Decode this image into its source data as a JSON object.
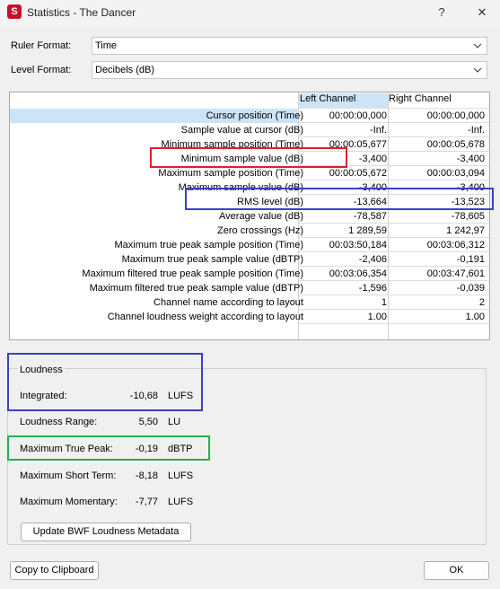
{
  "window": {
    "title": "Statistics - The Dancer",
    "app_icon_letter": "S",
    "help_glyph": "?",
    "close_glyph": "✕"
  },
  "settings": {
    "ruler_label": "Ruler Format:",
    "ruler_value": "Time",
    "level_label": "Level Format:",
    "level_value": "Decibels (dB)"
  },
  "table": {
    "headers": [
      "Left Channel",
      "Right Channel"
    ],
    "rows": [
      {
        "name": "Cursor position (Time)",
        "left": "00:00:00,000",
        "right": "00:00:00,000"
      },
      {
        "name": "Sample value at cursor (dB)",
        "left": "-Inf.",
        "right": "-Inf."
      },
      {
        "name": "Minimum sample position (Time)",
        "left": "00:00:05,677",
        "right": "00:00:05,678"
      },
      {
        "name": "Minimum sample value (dB)",
        "left": "-3,400",
        "right": "-3,400"
      },
      {
        "name": "Maximum sample position (Time)",
        "left": "00:00:05,672",
        "right": "00:00:03,094"
      },
      {
        "name": "Maximum sample value (dB)",
        "left": "-3,400",
        "right": "-3,400"
      },
      {
        "name": "RMS level (dB)",
        "left": "-13,664",
        "right": "-13,523"
      },
      {
        "name": "Average value (dB)",
        "left": "-78,587",
        "right": "-78,605"
      },
      {
        "name": "Zero crossings (Hz)",
        "left": "1 289,59",
        "right": "1 242,97"
      },
      {
        "name": "Maximum true peak sample position (Time)",
        "left": "00:03:50,184",
        "right": "00:03:06,312"
      },
      {
        "name": "Maximum true peak sample value (dBTP)",
        "left": "-2,406",
        "right": "-0,191"
      },
      {
        "name": "Maximum filtered true peak sample position (Time)",
        "left": "00:03:06,354",
        "right": "00:03:47,601"
      },
      {
        "name": "Maximum filtered true peak sample value (dBTP)",
        "left": "-1,596",
        "right": "-0,039"
      },
      {
        "name": "Channel name according to layout",
        "left": "1",
        "right": "2"
      },
      {
        "name": "Channel loudness weight according to layout",
        "left": "1.00",
        "right": "1.00"
      }
    ]
  },
  "loudness": {
    "group_label": "Loudness",
    "items": [
      {
        "label": "Integrated:",
        "value": "-10,68",
        "unit": "LUFS"
      },
      {
        "label": "Loudness Range:",
        "value": "5,50",
        "unit": "LU"
      },
      {
        "label": "Maximum True Peak:",
        "value": "-0,19",
        "unit": "dBTP"
      },
      {
        "label": "Maximum Short Term:",
        "value": "-8,18",
        "unit": "LUFS"
      },
      {
        "label": "Maximum Momentary:",
        "value": "-7,77",
        "unit": "LUFS"
      }
    ],
    "update_button": "Update BWF Loudness Metadata"
  },
  "footer": {
    "copy_button": "Copy to Clipboard",
    "ok_button": "OK"
  },
  "highlights": {
    "red": "#e0202a",
    "blue": "#3b3fc4",
    "green": "#22b14c",
    "selection": "#cce4f7"
  }
}
